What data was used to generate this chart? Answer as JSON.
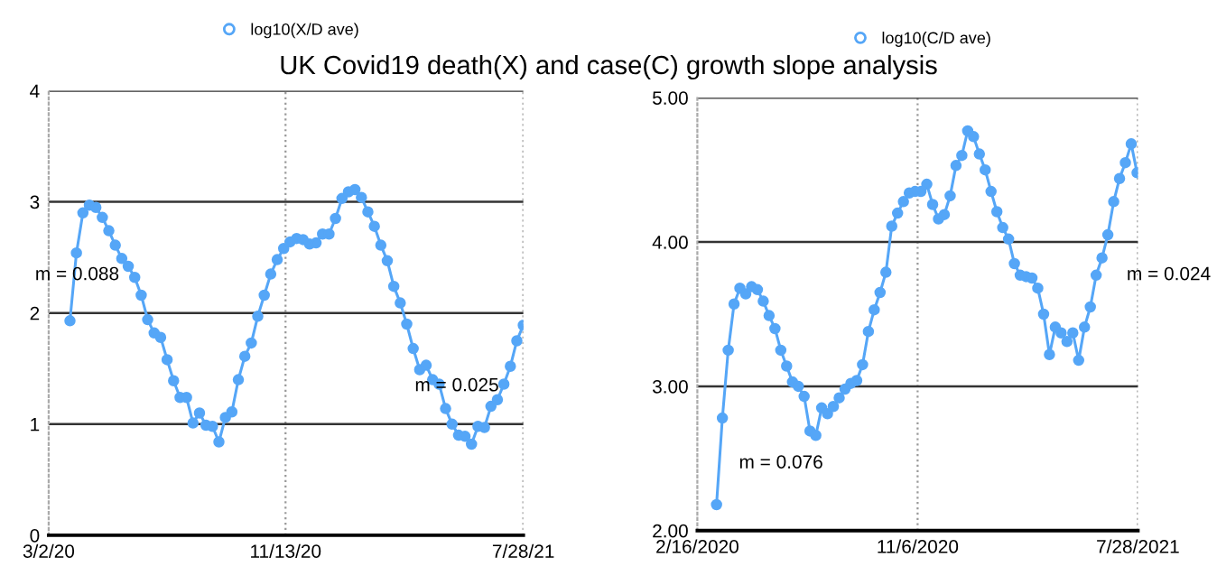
{
  "chart_data": [
    {
      "type": "line",
      "title": "UK Covid19 death(X) and case(C) growth slope analysis",
      "legend": "top",
      "grid": "y",
      "marker": "circle",
      "line_style": "solid",
      "x": [
        "2020-03-25",
        "2020-04-01",
        "2020-04-08",
        "2020-04-15",
        "2020-04-22",
        "2020-04-29",
        "2020-05-06",
        "2020-05-13",
        "2020-05-20",
        "2020-05-27",
        "2020-06-03",
        "2020-06-10",
        "2020-06-17",
        "2020-06-24",
        "2020-07-01",
        "2020-07-08",
        "2020-07-15",
        "2020-07-22",
        "2020-07-29",
        "2020-08-05",
        "2020-08-12",
        "2020-08-19",
        "2020-08-26",
        "2020-09-02",
        "2020-09-09",
        "2020-09-16",
        "2020-09-23",
        "2020-09-30",
        "2020-10-07",
        "2020-10-14",
        "2020-10-21",
        "2020-10-28",
        "2020-11-04",
        "2020-11-11",
        "2020-11-18",
        "2020-11-25",
        "2020-12-02",
        "2020-12-09",
        "2020-12-16",
        "2020-12-23",
        "2020-12-30",
        "2021-01-06",
        "2021-01-13",
        "2021-01-20",
        "2021-01-27",
        "2021-02-03",
        "2021-02-10",
        "2021-02-17",
        "2021-02-24",
        "2021-03-03",
        "2021-03-10",
        "2021-03-17",
        "2021-03-24",
        "2021-03-31",
        "2021-04-07",
        "2021-04-14",
        "2021-04-21",
        "2021-04-28",
        "2021-05-05",
        "2021-05-12",
        "2021-05-19",
        "2021-05-26",
        "2021-06-02",
        "2021-06-09",
        "2021-06-16",
        "2021-06-23",
        "2021-06-30",
        "2021-07-07",
        "2021-07-14",
        "2021-07-21",
        "2021-07-28"
      ],
      "series": [
        {
          "name": "log10(X/D ave)",
          "color": "#55a6f7",
          "values": [
            1.93,
            2.54,
            2.9,
            2.97,
            2.95,
            2.86,
            2.74,
            2.61,
            2.49,
            2.42,
            2.32,
            2.16,
            1.94,
            1.82,
            1.78,
            1.58,
            1.39,
            1.24,
            1.24,
            1.01,
            1.1,
            0.99,
            0.98,
            0.84,
            1.06,
            1.11,
            1.4,
            1.61,
            1.73,
            1.97,
            2.16,
            2.35,
            2.48,
            2.58,
            2.64,
            2.67,
            2.66,
            2.62,
            2.63,
            2.71,
            2.71,
            2.85,
            3.03,
            3.09,
            3.11,
            3.04,
            2.91,
            2.78,
            2.61,
            2.47,
            2.24,
            2.09,
            1.9,
            1.68,
            1.49,
            1.53,
            1.4,
            1.36,
            1.14,
            1.0,
            0.9,
            0.89,
            0.82,
            0.98,
            0.97,
            1.16,
            1.22,
            1.36,
            1.52,
            1.75,
            1.89
          ]
        }
      ],
      "xlim": [
        "2020-03-02",
        "2021-07-28"
      ],
      "xticks": [
        {
          "value": "2020-03-02",
          "label": "3/2/20"
        },
        {
          "value": "2020-11-13",
          "label": "11/13/20"
        },
        {
          "value": "2021-07-28",
          "label": "7/28/21"
        }
      ],
      "ylim": [
        0,
        4
      ],
      "yticks": [
        0,
        1,
        2,
        3,
        4
      ],
      "ref_lines": [
        {
          "axis": "x",
          "value": "2020-11-13",
          "color": "#999999",
          "line_style": "dotted"
        },
        {
          "axis": "x",
          "value": "2021-07-28",
          "color": "#999999",
          "line_style": "dotted"
        }
      ],
      "annotations": [
        "m = 0.088",
        "m = 0.025"
      ]
    },
    {
      "type": "line",
      "legend": "top",
      "grid": "y",
      "marker": "circle",
      "line_style": "solid",
      "x": [
        "2020-03-10",
        "2020-03-17",
        "2020-03-24",
        "2020-03-31",
        "2020-04-07",
        "2020-04-14",
        "2020-04-21",
        "2020-04-28",
        "2020-05-05",
        "2020-05-12",
        "2020-05-19",
        "2020-05-26",
        "2020-06-02",
        "2020-06-09",
        "2020-06-16",
        "2020-06-23",
        "2020-06-30",
        "2020-07-07",
        "2020-07-14",
        "2020-07-21",
        "2020-07-28",
        "2020-08-04",
        "2020-08-11",
        "2020-08-18",
        "2020-08-25",
        "2020-09-01",
        "2020-09-08",
        "2020-09-15",
        "2020-09-22",
        "2020-09-29",
        "2020-10-06",
        "2020-10-13",
        "2020-10-20",
        "2020-10-27",
        "2020-11-03",
        "2020-11-10",
        "2020-11-17",
        "2020-11-24",
        "2020-12-01",
        "2020-12-08",
        "2020-12-15",
        "2020-12-22",
        "2020-12-29",
        "2021-01-05",
        "2021-01-12",
        "2021-01-19",
        "2021-01-26",
        "2021-02-02",
        "2021-02-09",
        "2021-02-16",
        "2021-02-23",
        "2021-03-02",
        "2021-03-09",
        "2021-03-16",
        "2021-03-23",
        "2021-03-30",
        "2021-04-06",
        "2021-04-13",
        "2021-04-20",
        "2021-04-27",
        "2021-05-04",
        "2021-05-11",
        "2021-05-18",
        "2021-05-25",
        "2021-06-01",
        "2021-06-08",
        "2021-06-15",
        "2021-06-22",
        "2021-06-29",
        "2021-07-06",
        "2021-07-13",
        "2021-07-20",
        "2021-07-27"
      ],
      "series": [
        {
          "name": "log10(C/D ave)",
          "color": "#55a6f7",
          "values": [
            2.18,
            2.78,
            3.25,
            3.57,
            3.68,
            3.64,
            3.69,
            3.67,
            3.59,
            3.49,
            3.4,
            3.25,
            3.14,
            3.03,
            3.0,
            2.93,
            2.69,
            2.66,
            2.85,
            2.81,
            2.86,
            2.92,
            2.98,
            3.02,
            3.04,
            3.15,
            3.38,
            3.53,
            3.65,
            3.79,
            4.11,
            4.2,
            4.28,
            4.34,
            4.35,
            4.35,
            4.4,
            4.26,
            4.16,
            4.19,
            4.32,
            4.53,
            4.6,
            4.77,
            4.73,
            4.61,
            4.5,
            4.35,
            4.21,
            4.1,
            4.02,
            3.85,
            3.77,
            3.76,
            3.75,
            3.68,
            3.5,
            3.22,
            3.41,
            3.37,
            3.31,
            3.37,
            3.18,
            3.41,
            3.55,
            3.77,
            3.89,
            4.05,
            4.28,
            4.44,
            4.55,
            4.68,
            4.48
          ]
        }
      ],
      "xlim": [
        "2020-02-16",
        "2021-07-28"
      ],
      "xticks": [
        {
          "value": "2020-02-16",
          "label": "2/16/2020"
        },
        {
          "value": "2020-11-06",
          "label": "11/6/2020"
        },
        {
          "value": "2021-07-28",
          "label": "7/28/2021"
        }
      ],
      "ylim": [
        2,
        5
      ],
      "yticks": [
        {
          "value": 2,
          "label": "2.00"
        },
        {
          "value": 3,
          "label": "3.00"
        },
        {
          "value": 4,
          "label": "4.00"
        },
        {
          "value": 5,
          "label": "5.00"
        }
      ],
      "ref_lines": [
        {
          "axis": "x",
          "value": "2020-11-06",
          "color": "#999999",
          "line_style": "dotted"
        },
        {
          "axis": "x",
          "value": "2021-07-28",
          "color": "#999999",
          "line_style": "dotted"
        }
      ],
      "annotations": [
        "m = 0.076",
        "m = 0.024"
      ]
    }
  ]
}
